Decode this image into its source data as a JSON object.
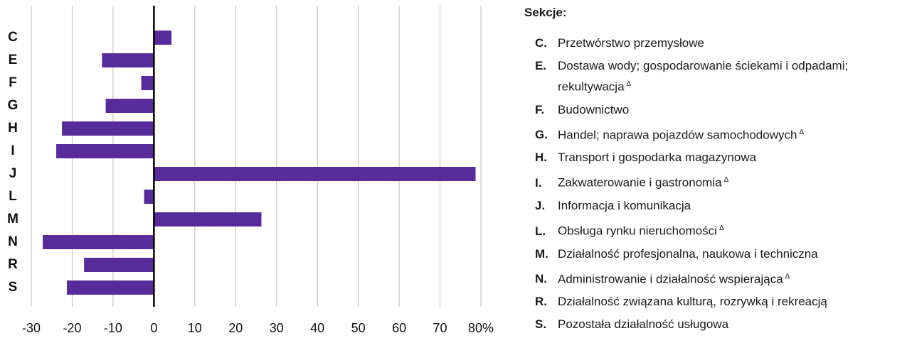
{
  "chart_data": {
    "type": "barh",
    "categories": [
      "C",
      "E",
      "F",
      "G",
      "H",
      "I",
      "J",
      "L",
      "M",
      "N",
      "R",
      "S"
    ],
    "values": [
      4.3,
      -12.7,
      -3.1,
      -11.8,
      -22.5,
      -23.9,
      78.7,
      -2.4,
      26.3,
      -27.2,
      -17.1,
      -21.3
    ],
    "color": "#572c9a",
    "xlim": [
      -30,
      80
    ],
    "xticks": [
      -30,
      -20,
      -10,
      0,
      10,
      20,
      30,
      40,
      50,
      60,
      70,
      {
        "value": 80,
        "label": "80%"
      }
    ],
    "grid": true
  },
  "legend": {
    "title": "Sekcje:",
    "items": [
      {
        "code": "C.",
        "text": "Przetwórstwo przemysłowe"
      },
      {
        "code": "E.",
        "text": "Dostawa wody; gospodarowanie ściekami i odpadami; rekultywacja",
        "mark": "Δ"
      },
      {
        "code": "F.",
        "text": "Budownictwo"
      },
      {
        "code": "G.",
        "text": "Handel; naprawa pojazdów samochodowych",
        "mark": "Δ"
      },
      {
        "code": "H.",
        "text": "Transport i gospodarka magazynowa"
      },
      {
        "code": "I.",
        "text": "Zakwaterowanie i gastronomia",
        "mark": "Δ"
      },
      {
        "code": "J.",
        "text": "Informacja i komunikacja"
      },
      {
        "code": "L.",
        "text": "Obsługa rynku nieruchomości",
        "mark": "Δ"
      },
      {
        "code": "M.",
        "text": "Działalność profesjonalna, naukowa i techniczna"
      },
      {
        "code": "N.",
        "text": "Administrowanie i działalność wspierająca",
        "mark": "Δ"
      },
      {
        "code": "R.",
        "text": "Działalność związana kulturą, rozrywką i rekreacją"
      },
      {
        "code": "S.",
        "text": "Pozostała działalność usługowa"
      }
    ]
  }
}
